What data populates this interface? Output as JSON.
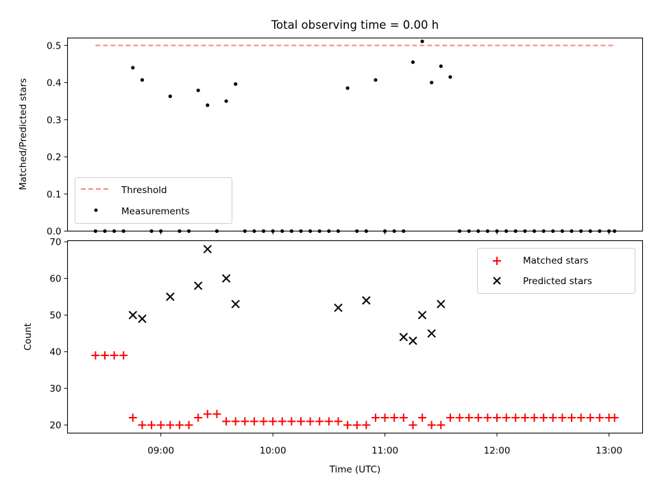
{
  "title": "Total observing time = 0.00 h",
  "colors": {
    "threshold": "#ff8080",
    "measurement": "#000000",
    "matched": "#ff0000",
    "predicted": "#000000"
  },
  "chart_data": [
    {
      "type": "scatter",
      "name": "ratio-panel",
      "xlabel": "",
      "ylabel": "Matched/Predicted stars",
      "xlim": [
        "08:10",
        "13:18"
      ],
      "ylim": [
        0,
        0.52
      ],
      "yticks": [
        0.0,
        0.1,
        0.2,
        0.3,
        0.4,
        0.5
      ],
      "yticklabels": [
        "0.0",
        "0.1",
        "0.2",
        "0.3",
        "0.4",
        "0.5"
      ],
      "xticks": [
        "09:00",
        "10:00",
        "11:00",
        "12:00",
        "13:00"
      ],
      "legend": {
        "placement": "lower-left",
        "entries": [
          "Threshold",
          "Measurements"
        ]
      },
      "threshold": {
        "label": "Threshold",
        "value": 0.5,
        "x_start": "08:25",
        "x_end": "13:03",
        "style": "dashed"
      },
      "series": [
        {
          "name": "Measurements",
          "x": [
            "08:25",
            "08:30",
            "08:35",
            "08:40",
            "08:45",
            "08:50",
            "08:55",
            "09:00",
            "09:05",
            "09:10",
            "09:15",
            "09:20",
            "09:25",
            "09:30",
            "09:35",
            "09:40",
            "09:45",
            "09:50",
            "09:55",
            "10:00",
            "10:05",
            "10:10",
            "10:15",
            "10:20",
            "10:25",
            "10:30",
            "10:35",
            "10:40",
            "10:45",
            "10:50",
            "10:55",
            "11:00",
            "11:05",
            "11:10",
            "11:15",
            "11:20",
            "11:25",
            "11:30",
            "11:35",
            "11:40",
            "11:45",
            "11:50",
            "11:55",
            "12:00",
            "12:05",
            "12:10",
            "12:15",
            "12:20",
            "12:25",
            "12:30",
            "12:35",
            "12:40",
            "12:45",
            "12:50",
            "12:55",
            "13:00",
            "13:03"
          ],
          "y": [
            0.0,
            0.0,
            0.0,
            0.0,
            0.44,
            0.407,
            0.0,
            0.0,
            0.363,
            0.0,
            0.0,
            0.379,
            0.339,
            0.0,
            0.35,
            0.396,
            0.0,
            0.0,
            0.0,
            0.0,
            0.0,
            0.0,
            0.0,
            0.0,
            0.0,
            0.0,
            0.0,
            0.385,
            0.0,
            0.0,
            0.407,
            0.0,
            0.0,
            0.0,
            0.455,
            0.511,
            0.4,
            0.444,
            0.415,
            0.0,
            0.0,
            0.0,
            0.0,
            0.0,
            0.0,
            0.0,
            0.0,
            0.0,
            0.0,
            0.0,
            0.0,
            0.0,
            0.0,
            0.0,
            0.0,
            0.0,
            0.0
          ]
        }
      ]
    },
    {
      "type": "scatter",
      "name": "count-panel",
      "xlabel": "Time (UTC)",
      "ylabel": "Count",
      "xlim": [
        "08:10",
        "13:18"
      ],
      "ylim": [
        17.8,
        70.3
      ],
      "yticks": [
        20,
        30,
        40,
        50,
        60,
        70
      ],
      "yticklabels": [
        "20",
        "30",
        "40",
        "50",
        "60",
        "70"
      ],
      "xticks": [
        "09:00",
        "10:00",
        "11:00",
        "12:00",
        "13:00"
      ],
      "xticklabels": [
        "09:00",
        "10:00",
        "11:00",
        "12:00",
        "13:00"
      ],
      "legend": {
        "placement": "top-right",
        "entries": [
          "Matched stars",
          "Predicted stars"
        ]
      },
      "series": [
        {
          "name": "Matched stars",
          "marker": "+",
          "x": [
            "08:25",
            "08:30",
            "08:35",
            "08:40",
            "08:45",
            "08:50",
            "08:55",
            "09:00",
            "09:05",
            "09:10",
            "09:15",
            "09:20",
            "09:25",
            "09:30",
            "09:35",
            "09:40",
            "09:45",
            "09:50",
            "09:55",
            "10:00",
            "10:05",
            "10:10",
            "10:15",
            "10:20",
            "10:25",
            "10:30",
            "10:35",
            "10:40",
            "10:45",
            "10:50",
            "10:55",
            "11:00",
            "11:05",
            "11:10",
            "11:15",
            "11:20",
            "11:25",
            "11:30",
            "11:35",
            "11:40",
            "11:45",
            "11:50",
            "11:55",
            "12:00",
            "12:05",
            "12:10",
            "12:15",
            "12:20",
            "12:25",
            "12:30",
            "12:35",
            "12:40",
            "12:45",
            "12:50",
            "12:55",
            "13:00",
            "13:03"
          ],
          "y": [
            39,
            39,
            39,
            39,
            22,
            20,
            20,
            20,
            20,
            20,
            20,
            22,
            23,
            23,
            21,
            21,
            21,
            21,
            21,
            21,
            21,
            21,
            21,
            21,
            21,
            21,
            21,
            20,
            20,
            20,
            22,
            22,
            22,
            22,
            20,
            22,
            20,
            20,
            22,
            22,
            22,
            22,
            22,
            22,
            22,
            22,
            22,
            22,
            22,
            22,
            22,
            22,
            22,
            22,
            22,
            22,
            22
          ]
        },
        {
          "name": "Predicted stars",
          "marker": "x",
          "x": [
            "08:45",
            "08:50",
            "09:05",
            "09:20",
            "09:25",
            "09:35",
            "09:40",
            "10:35",
            "10:50",
            "11:10",
            "11:15",
            "11:20",
            "11:25",
            "11:30"
          ],
          "y": [
            50,
            49,
            55,
            58,
            68,
            60,
            53,
            52,
            54,
            44,
            43,
            50,
            45,
            53
          ]
        }
      ]
    }
  ]
}
